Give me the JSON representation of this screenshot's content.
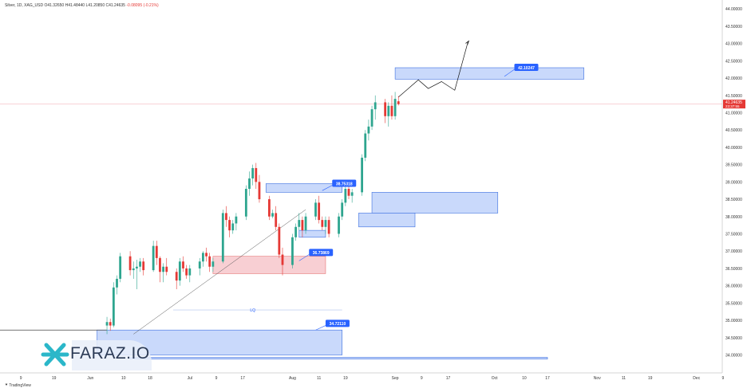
{
  "header": {
    "symbol": "Silver, 1D, XAG_USD",
    "open": "O41.32650",
    "high": "H41.48440",
    "low": "L41.20850",
    "close": "C41.24635",
    "change": "-0.08095 (-0.21%)"
  },
  "footer": {
    "brand": "TradingView"
  },
  "logo": {
    "text": "FARAZ.IO"
  },
  "colors": {
    "up": "#2ea58f",
    "down": "#e53935",
    "zone_blue_fill": "#c9d9fb",
    "zone_blue_stroke": "#3b6fe0",
    "zone_red_fill": "#f8cfd3",
    "zone_red_stroke": "#e57373",
    "label_blue": "#2962ff",
    "price_tag": "#e53935"
  },
  "chart_data": {
    "type": "candlestick",
    "y_ticks": [
      "34.00000",
      "34.50000",
      "35.00000",
      "35.50000",
      "36.00000",
      "36.50000",
      "37.00000",
      "37.50000",
      "38.00000",
      "38.50000",
      "39.00000",
      "39.50000",
      "40.00000",
      "40.50000",
      "41.00000",
      "41.50000",
      "42.00000",
      "42.50000",
      "43.00000",
      "43.50000",
      "44.00000"
    ],
    "ylim": [
      33.85,
      44.05
    ],
    "x_ticks": [
      {
        "label": "9",
        "day": 1
      },
      {
        "label": "19",
        "day": 11
      },
      {
        "label": "Jun",
        "day": 22
      },
      {
        "label": "10",
        "day": 32
      },
      {
        "label": "18",
        "day": 40
      },
      {
        "label": "Jul",
        "day": 52
      },
      {
        "label": "9",
        "day": 60
      },
      {
        "label": "17",
        "day": 68
      },
      {
        "label": "Aug",
        "day": 83
      },
      {
        "label": "11",
        "day": 91
      },
      {
        "label": "19",
        "day": 99
      },
      {
        "label": "Sep",
        "day": 114
      },
      {
        "label": "9",
        "day": 122
      },
      {
        "label": "17",
        "day": 130
      },
      {
        "label": "Oct",
        "day": 144
      },
      {
        "label": "10",
        "day": 153
      },
      {
        "label": "17",
        "day": 160
      },
      {
        "label": "Nov",
        "day": 175
      },
      {
        "label": "11",
        "day": 183
      },
      {
        "label": "19",
        "day": 191
      },
      {
        "label": "Dec",
        "day": 205
      },
      {
        "label": "9",
        "day": 213
      }
    ],
    "current_price": "41.24635",
    "current_countdown": "23:37:55",
    "candles": [
      [
        27,
        34.85,
        35.1,
        34.6,
        34.95
      ],
      [
        28,
        34.95,
        35.05,
        34.7,
        34.85
      ],
      [
        29,
        34.85,
        36.1,
        34.8,
        35.95
      ],
      [
        30,
        35.95,
        36.3,
        35.75,
        36.2
      ],
      [
        31,
        36.2,
        36.95,
        36.1,
        36.85
      ],
      [
        34,
        36.85,
        37.0,
        36.3,
        36.45
      ],
      [
        35,
        36.45,
        36.7,
        36.2,
        36.5
      ],
      [
        36,
        36.5,
        36.75,
        35.9,
        36.55
      ],
      [
        37,
        36.55,
        36.8,
        36.4,
        36.7
      ],
      [
        38,
        36.7,
        36.8,
        36.3,
        36.45
      ],
      [
        41,
        36.45,
        37.3,
        36.4,
        37.15
      ],
      [
        42,
        37.15,
        37.3,
        36.6,
        36.8
      ],
      [
        43,
        36.8,
        36.85,
        36.1,
        36.4
      ],
      [
        44,
        36.4,
        36.65,
        36.1,
        36.55
      ],
      [
        45,
        36.55,
        36.8,
        36.3,
        36.4
      ],
      [
        48,
        36.4,
        36.5,
        35.9,
        36.15
      ],
      [
        49,
        36.15,
        36.8,
        36.0,
        36.7
      ],
      [
        50,
        36.7,
        36.85,
        36.4,
        36.5
      ],
      [
        51,
        36.5,
        36.6,
        36.2,
        36.3
      ],
      [
        52,
        36.3,
        36.6,
        36.1,
        36.5
      ],
      [
        55,
        36.5,
        36.8,
        36.3,
        36.7
      ],
      [
        56,
        36.7,
        37.0,
        36.55,
        36.95
      ],
      [
        57,
        36.95,
        37.1,
        36.7,
        36.85
      ],
      [
        58,
        36.85,
        36.95,
        36.4,
        36.55
      ],
      [
        59,
        36.55,
        36.8,
        36.4,
        36.7
      ],
      [
        62,
        36.7,
        38.2,
        36.65,
        38.1
      ],
      [
        63,
        38.1,
        38.3,
        37.7,
        37.9
      ],
      [
        64,
        37.9,
        38.0,
        37.4,
        37.6
      ],
      [
        65,
        37.6,
        37.9,
        37.5,
        37.8
      ],
      [
        66,
        37.8,
        38.1,
        37.6,
        38.0
      ],
      [
        69,
        38.0,
        38.9,
        37.9,
        38.8
      ],
      [
        70,
        38.8,
        39.3,
        38.6,
        39.1
      ],
      [
        71,
        39.1,
        39.5,
        38.9,
        39.4
      ],
      [
        72,
        39.4,
        39.55,
        38.8,
        39.0
      ],
      [
        73,
        39.0,
        39.2,
        38.4,
        38.5
      ],
      [
        76,
        38.5,
        38.6,
        37.9,
        38.0
      ],
      [
        77,
        38.0,
        38.2,
        37.95,
        38.1
      ],
      [
        78,
        38.1,
        38.3,
        37.6,
        37.7
      ],
      [
        79,
        37.7,
        37.8,
        36.8,
        36.9
      ],
      [
        80,
        36.9,
        37.1,
        36.3,
        36.6
      ],
      [
        83,
        36.6,
        37.5,
        36.5,
        37.4
      ],
      [
        84,
        37.4,
        37.8,
        37.3,
        37.7
      ],
      [
        85,
        37.7,
        38.1,
        37.6,
        37.9
      ],
      [
        86,
        37.9,
        38.0,
        37.4,
        37.6
      ],
      [
        87,
        37.6,
        38.1,
        37.5,
        38.0
      ],
      [
        90,
        38.0,
        38.5,
        37.9,
        38.4
      ],
      [
        91,
        38.4,
        38.6,
        37.8,
        37.9
      ],
      [
        92,
        37.9,
        38.0,
        37.6,
        37.7
      ],
      [
        93,
        37.7,
        38.0,
        37.5,
        37.9
      ],
      [
        94,
        37.9,
        38.0,
        37.4,
        37.5
      ],
      [
        97,
        37.5,
        38.1,
        37.4,
        38.0
      ],
      [
        98,
        38.0,
        38.5,
        37.9,
        38.4
      ],
      [
        99,
        38.4,
        38.9,
        38.3,
        38.8
      ],
      [
        100,
        38.8,
        38.9,
        38.5,
        38.6
      ],
      [
        101,
        38.6,
        38.8,
        38.4,
        38.7
      ],
      [
        104,
        38.7,
        39.8,
        38.6,
        39.7
      ],
      [
        105,
        39.7,
        40.5,
        39.6,
        40.4
      ],
      [
        106,
        40.4,
        40.8,
        40.2,
        40.6
      ],
      [
        107,
        40.6,
        41.2,
        40.5,
        41.1
      ],
      [
        108,
        41.1,
        41.5,
        40.8,
        41.3
      ],
      [
        111,
        41.3,
        41.4,
        40.7,
        40.9
      ],
      [
        112,
        40.9,
        41.3,
        40.6,
        41.2
      ],
      [
        113,
        41.2,
        41.5,
        40.8,
        40.9
      ],
      [
        114,
        40.9,
        41.6,
        40.8,
        41.4
      ],
      [
        115,
        41.33,
        41.48,
        41.21,
        41.25
      ]
    ],
    "annotations": [
      "42.10247",
      "38.75318",
      "36.73869",
      "34.72110",
      "LQ"
    ]
  }
}
